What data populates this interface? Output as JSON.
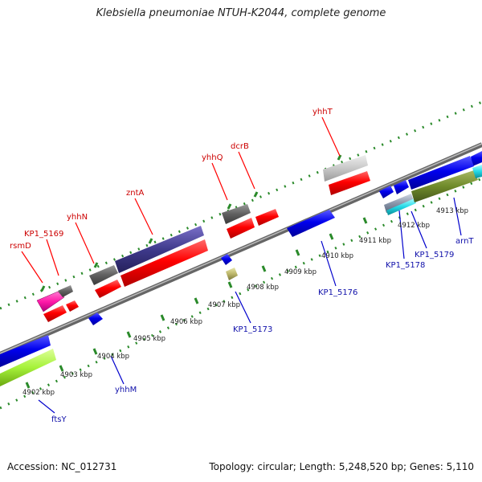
{
  "title": "Klebsiella pneumoniae NTUH-K2044, complete genome",
  "footer": {
    "accession": "Accession: NC_012731",
    "summary": "Topology: circular; Length: 5,248,520 bp; Genes: 5,110"
  },
  "scale_labels": [
    "4902 kbp",
    "4903 kbp",
    "4904 kbp",
    "4905 kbp",
    "4906 kbp",
    "4907 kbp",
    "4908 kbp",
    "4909 kbp",
    "4910 kbp",
    "4911 kbp",
    "4912 kbp",
    "4913 kbp"
  ],
  "gene_labels_above": [
    "rsmD",
    "KP1_5169",
    "yhhN",
    "zntA",
    "yhhQ",
    "dcrB",
    "yhhT"
  ],
  "gene_labels_below": [
    "ftsY",
    "yhhM",
    "KP1_5173",
    "KP1_5176",
    "KP1_5178",
    "KP1_5179",
    "arnT"
  ],
  "colors": {
    "label_above": "#cc0000",
    "label_below": "#0000aa",
    "backbone": "#888888",
    "tick_dots": "#2a8a2a"
  }
}
